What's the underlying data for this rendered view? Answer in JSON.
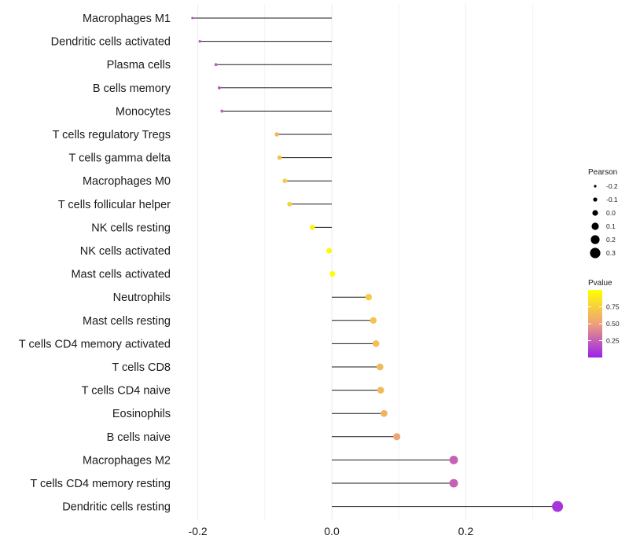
{
  "chart_data": {
    "type": "lollipop",
    "categories": [
      "Macrophages M1",
      "Dendritic cells activated",
      "Plasma cells",
      "B cells memory",
      "Monocytes",
      "T cells regulatory  Tregs",
      "T cells gamma delta",
      "Macrophages M0",
      "T cells follicular helper",
      "NK cells resting",
      "NK cells activated",
      "Mast cells activated",
      "Neutrophils",
      "Mast cells resting",
      "T cells CD4 memory activated",
      "T cells CD8",
      "T cells CD4 naive",
      "Eosinophils",
      "B cells naive",
      "Macrophages M2",
      "T cells CD4 memory resting",
      "Dendritic cells resting"
    ],
    "pearson": [
      -0.208,
      -0.197,
      -0.173,
      -0.168,
      -0.164,
      -0.082,
      -0.078,
      -0.07,
      -0.063,
      -0.029,
      -0.004,
      0.001,
      0.055,
      0.062,
      0.066,
      0.072,
      0.073,
      0.078,
      0.097,
      0.182,
      0.182,
      0.337
    ],
    "pvalue": [
      0.18,
      0.2,
      0.22,
      0.19,
      0.26,
      0.62,
      0.68,
      0.72,
      0.74,
      0.92,
      0.98,
      0.99,
      0.72,
      0.68,
      0.66,
      0.63,
      0.63,
      0.6,
      0.52,
      0.26,
      0.26,
      0.08
    ],
    "xlim": [
      -0.21,
      0.34
    ],
    "x_ticks": [
      "-0.2",
      "0.0",
      "0.2"
    ],
    "x_tick_values": [
      -0.2,
      0.0,
      0.2
    ],
    "xlabel": "",
    "ylabel": "",
    "legend_size": {
      "title": "Pearson",
      "labels": [
        "-0.2",
        "-0.1",
        "0.0",
        "0.1",
        "0.2",
        "0.3"
      ],
      "values": [
        -0.2,
        -0.1,
        0.0,
        0.1,
        0.2,
        0.3
      ]
    },
    "legend_color": {
      "title": "Pvalue",
      "labels": [
        "0.75",
        "0.50",
        "0.25"
      ],
      "values": [
        0.75,
        0.5,
        0.25
      ],
      "range": [
        0.0,
        1.0
      ],
      "low_color": "#9b1ff0",
      "mid_color": "#eea07a",
      "high_color": "#ffff00"
    },
    "grid": "vertical",
    "legend_position": "right"
  }
}
